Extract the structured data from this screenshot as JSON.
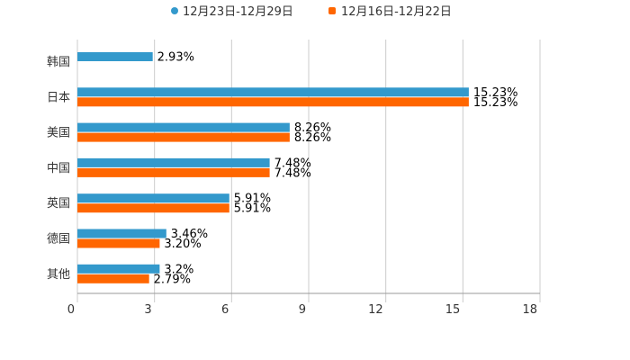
{
  "colors": {
    "series_a": "#3399cc",
    "series_b": "#ff6600",
    "grid": "#cccccc",
    "axis": "#999999"
  },
  "chart_data": {
    "type": "bar",
    "orientation": "horizontal",
    "title": "",
    "xlabel": "",
    "ylabel": "",
    "xlim": [
      0,
      18
    ],
    "ticks": [
      "0",
      "3",
      "6",
      "9",
      "12",
      "15",
      "18"
    ],
    "grid": true,
    "legend_position": "top-center",
    "categories": [
      "韩国",
      "日本",
      "美国",
      "中国",
      "英国",
      "德国",
      "其他"
    ],
    "series": [
      {
        "name": "12月23日-12月29日",
        "values": [
          2.93,
          15.23,
          8.26,
          7.48,
          5.91,
          3.46,
          3.2
        ],
        "labels": [
          "2.93%",
          "15.23%",
          "8.26%",
          "7.48%",
          "5.91%",
          "3.46%",
          "3.2%"
        ]
      },
      {
        "name": "12月16日-12月22日",
        "values": [
          null,
          15.23,
          8.26,
          7.48,
          5.91,
          3.2,
          2.79
        ],
        "labels": [
          null,
          "15.23%",
          "8.26%",
          "7.48%",
          "5.91%",
          "3.20%",
          "2.79%"
        ]
      }
    ]
  }
}
